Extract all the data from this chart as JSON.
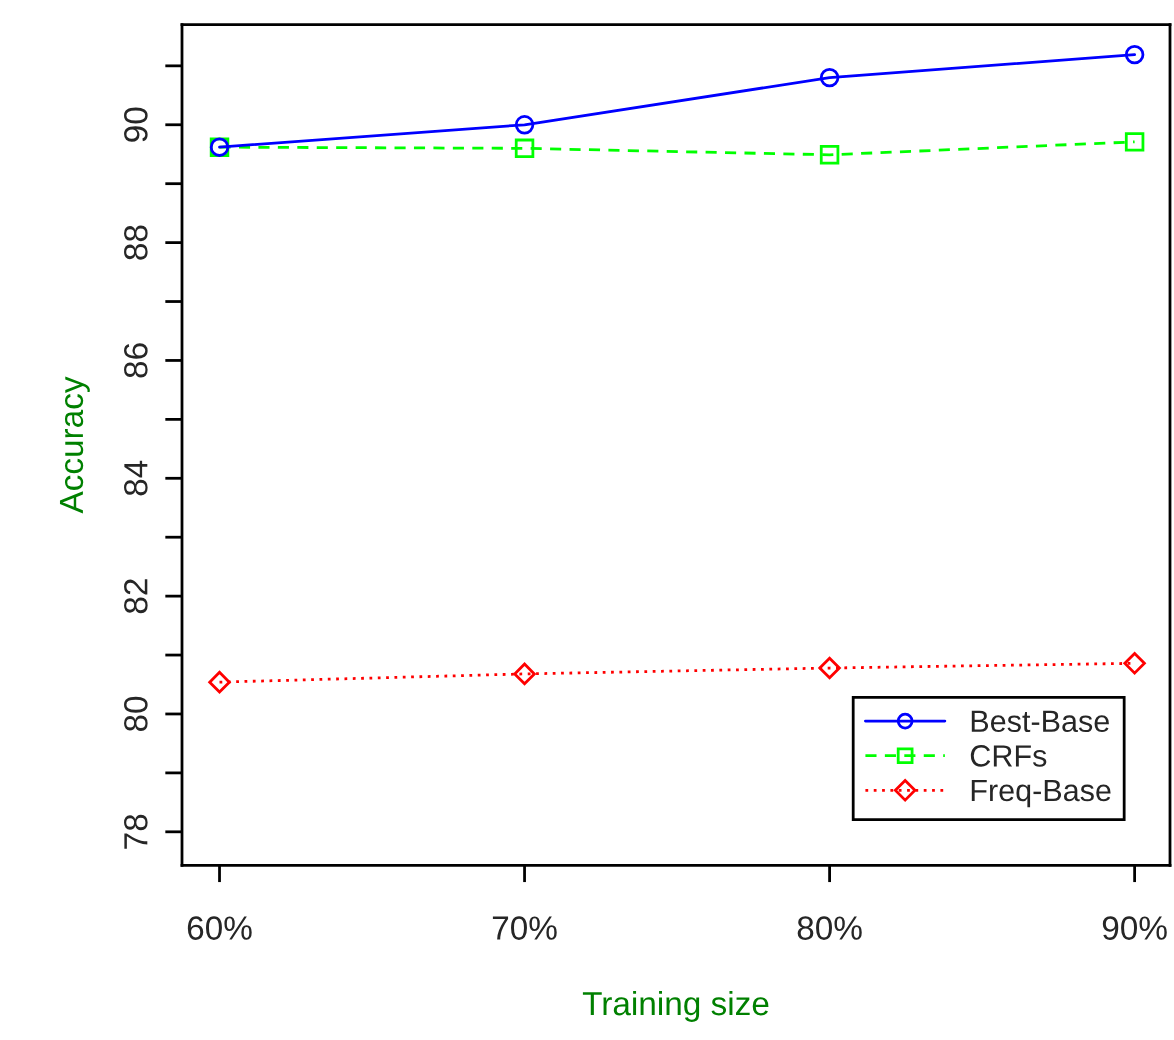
{
  "chart_data": {
    "type": "line",
    "xlabel": "Training size",
    "ylabel": "Accuracy",
    "x": [
      60,
      70,
      80,
      90
    ],
    "series": [
      {
        "name": "Best-Base",
        "color": "#0000ff",
        "values": [
          89.62,
          90.0,
          90.8,
          91.19
        ],
        "marker": "circle",
        "line_style": "solid"
      },
      {
        "name": "CRFs",
        "color": "#00ff00",
        "values": [
          89.62,
          89.6,
          89.49,
          89.71
        ],
        "marker": "square",
        "line_style": "dashed"
      },
      {
        "name": "Freq-Base",
        "color": "#ff0000",
        "values": [
          80.54,
          80.68,
          80.78,
          80.86
        ],
        "marker": "diamond",
        "line_style": "dotted"
      }
    ],
    "xlim": [
      58.77,
      91.16
    ],
    "ylim": [
      77.43,
      91.7
    ],
    "xticks": [
      {
        "value": 60,
        "label": "60%"
      },
      {
        "value": 70,
        "label": "70%"
      },
      {
        "value": 80,
        "label": "80%"
      },
      {
        "value": 90,
        "label": "90%"
      }
    ],
    "yticks": [
      78,
      {
        "value": 79,
        "label": null
      },
      80,
      {
        "value": 81,
        "label": null
      },
      82,
      {
        "value": 83,
        "label": null
      },
      84,
      {
        "value": 85,
        "label": null
      },
      86,
      {
        "value": 87,
        "label": null
      },
      88,
      {
        "value": 89,
        "label": null
      },
      90,
      {
        "value": 91,
        "label": null
      }
    ],
    "legend": "bottom right",
    "grid": false
  }
}
